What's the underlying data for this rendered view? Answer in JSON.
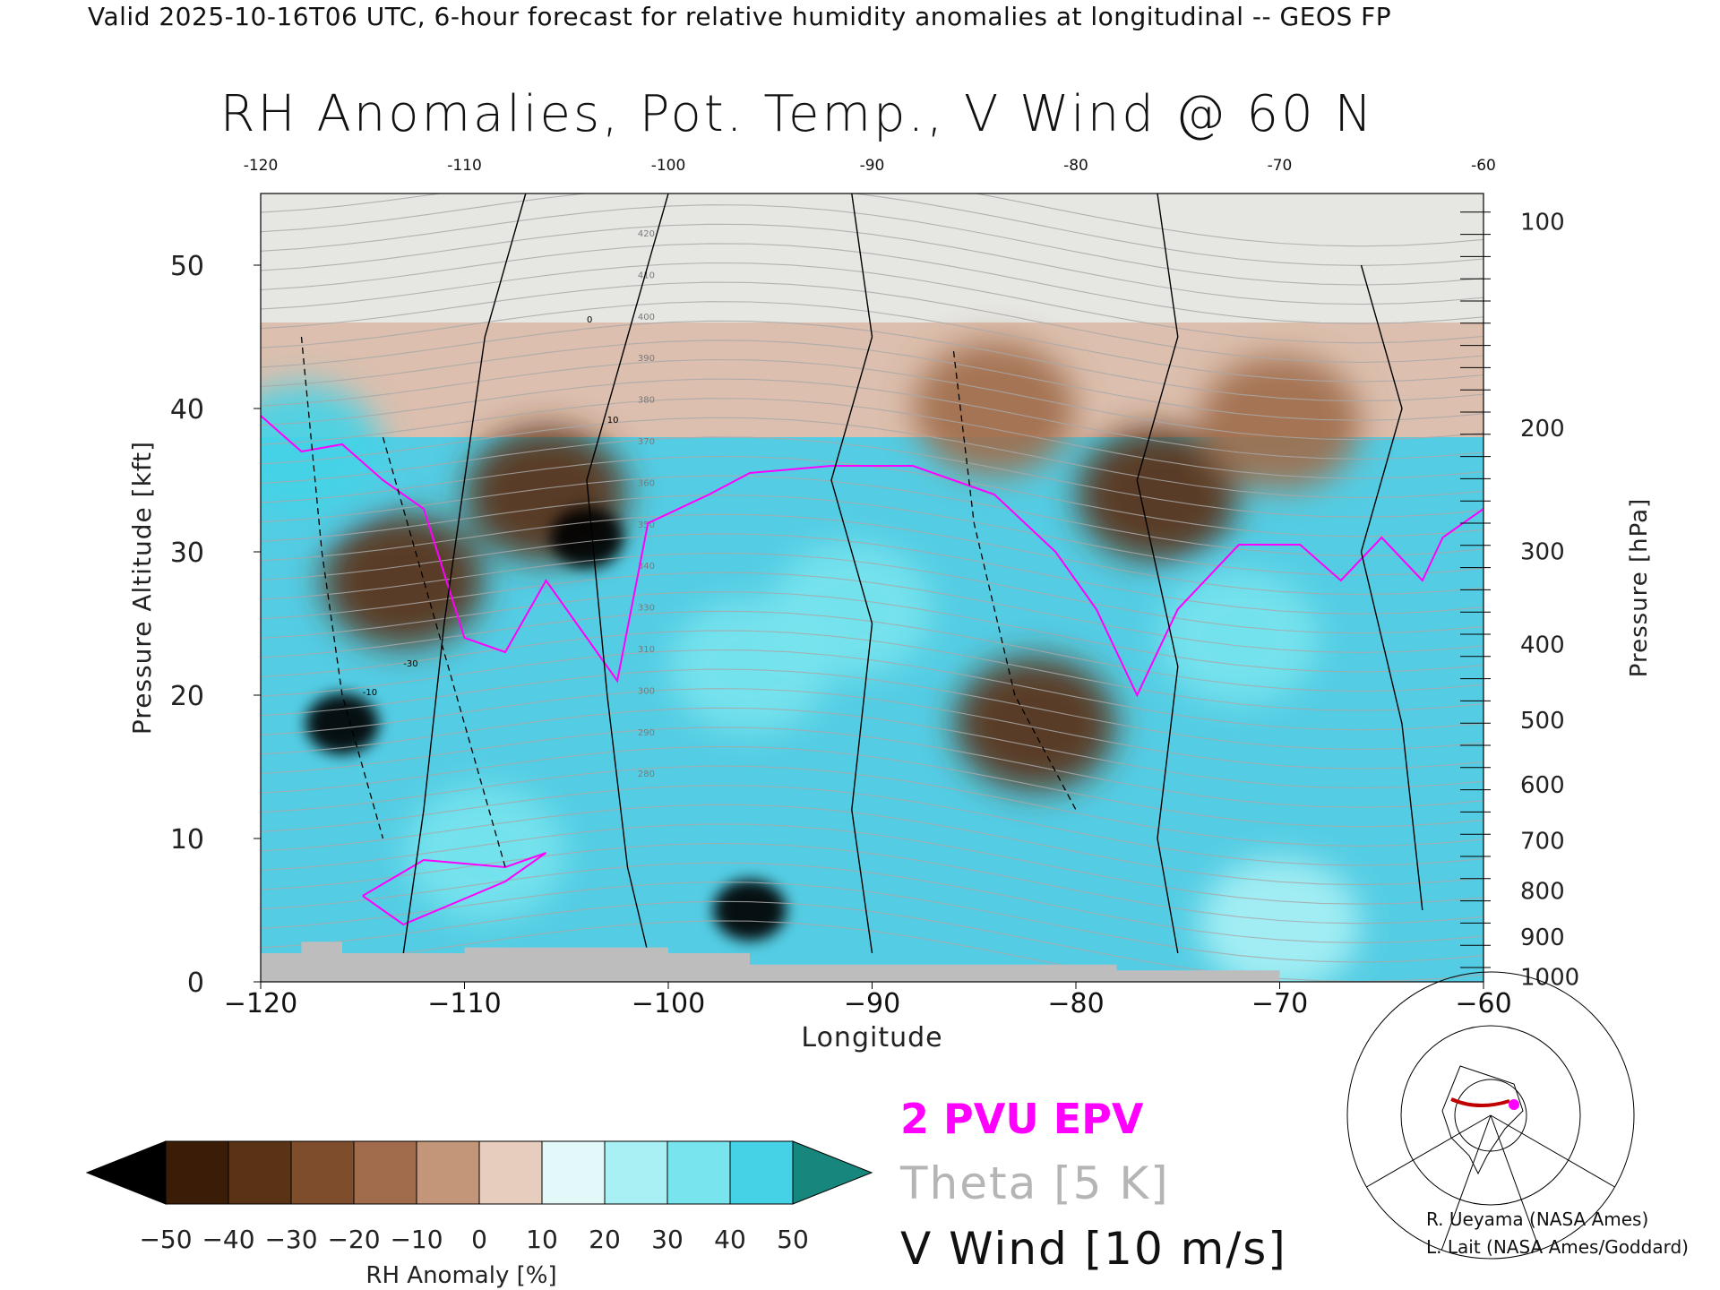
{
  "header": {
    "text": "Valid 2025-10-16T06 UTC, 6-hour forecast for relative humidity anomalies at longitudinal -- GEOS FP"
  },
  "chart_data": {
    "type": "heatmap",
    "title": "RH Anomalies, Pot. Temp., V Wind @ 60 N",
    "xlabel": "Longitude",
    "ylabel_left": "Pressure Altitude [kft]",
    "ylabel_right": "Pressure [hPa]",
    "xlim": [
      -120,
      -60
    ],
    "ylim": [
      0,
      55
    ],
    "x_ticks": [
      -120,
      -110,
      -100,
      -90,
      -80,
      -70,
      -60
    ],
    "y_ticks_left": [
      0,
      10,
      20,
      30,
      40,
      50
    ],
    "y_ticks_right": [
      {
        "label": "100",
        "kft": 53.1
      },
      {
        "label": "200",
        "kft": 38.7
      },
      {
        "label": "300",
        "kft": 30.1
      },
      {
        "label": "400",
        "kft": 23.6
      },
      {
        "label": "500",
        "kft": 18.3
      },
      {
        "label": "600",
        "kft": 13.8
      },
      {
        "label": "700",
        "kft": 9.9
      },
      {
        "label": "800",
        "kft": 6.4
      },
      {
        "label": "900",
        "kft": 3.2
      },
      {
        "label": "1000",
        "kft": 0.4
      }
    ],
    "colorbar": {
      "label": "RH Anomaly [%]",
      "ticks": [
        -50,
        -40,
        -30,
        -20,
        -10,
        0,
        10,
        20,
        30,
        40,
        50
      ],
      "colors": [
        "#000000",
        "#3b1c07",
        "#5a3215",
        "#7e4d2c",
        "#a06c4c",
        "#c39679",
        "#e6cdbd",
        "#e3f9f9",
        "#a8f0f4",
        "#78e4ee",
        "#45d2e6",
        "#1bb3d3",
        "#0a7ea6",
        "#17877e"
      ]
    },
    "theta_labels": [
      420,
      410,
      400,
      390,
      380,
      370,
      360,
      350,
      340,
      330,
      310,
      300,
      290,
      280
    ],
    "wind_labels": [
      0,
      10,
      -10,
      -30
    ],
    "anomaly_features": [
      {
        "lon": -116,
        "kft": 18,
        "value": -55
      },
      {
        "lon": -104,
        "kft": 31,
        "value": -55
      },
      {
        "lon": -96,
        "kft": 5,
        "value": -55
      },
      {
        "lon": -106,
        "kft": 34,
        "value": -40
      },
      {
        "lon": -113,
        "kft": 28,
        "value": -35
      },
      {
        "lon": -84,
        "kft": 40,
        "value": -20
      },
      {
        "lon": -76,
        "kft": 34,
        "value": -40
      },
      {
        "lon": -82,
        "kft": 18,
        "value": -40
      },
      {
        "lon": -70,
        "kft": 39,
        "value": -20
      },
      {
        "lon": -91,
        "kft": 26,
        "value": 35
      },
      {
        "lon": -96,
        "kft": 22,
        "value": 30
      },
      {
        "lon": -72,
        "kft": 24,
        "value": 30
      },
      {
        "lon": -118,
        "kft": 37,
        "value": 45
      },
      {
        "lon": -109,
        "kft": 9,
        "value": 35
      },
      {
        "lon": -70,
        "kft": 4,
        "value": 20
      }
    ]
  },
  "legend": {
    "epv": "2 PVU EPV",
    "theta": "Theta [5 K]",
    "vwind": "V Wind [10 m/s]"
  },
  "credits": {
    "line1": "R. Ueyama (NASA Ames)",
    "line2": "L. Lait (NASA Ames/Goddard)"
  },
  "colors": {
    "epv": "#ff00ff",
    "theta": "#a8a8a8",
    "wind": "#000000",
    "terrain": "#bdbdbd",
    "locator_track": "#c00000",
    "locator_marker": "#ff00ff"
  }
}
